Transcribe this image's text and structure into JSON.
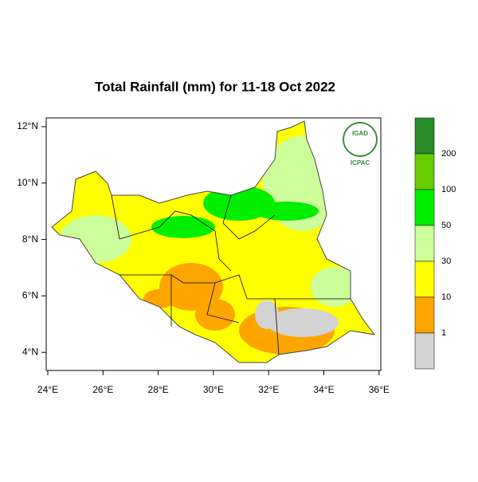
{
  "title": "Total Rainfall (mm) for 11-18 Oct 2022",
  "map": {
    "x_ticks": [
      "24°E",
      "26°E",
      "28°E",
      "30°E",
      "32°E",
      "34°E",
      "36°E"
    ],
    "y_ticks": [
      "12°N",
      "10°N",
      "8°N",
      "6°N",
      "4°N"
    ]
  },
  "legend": {
    "labels": [
      200,
      100,
      50,
      30,
      10,
      1
    ],
    "colors": [
      "#2a8c2a",
      "#66cc00",
      "#00ee00",
      "#ccff99",
      "#ffff00",
      "#ffa500",
      "#d3d3d3"
    ]
  },
  "logo": {
    "top": "IGAD",
    "bottom": "ICPAC"
  }
}
